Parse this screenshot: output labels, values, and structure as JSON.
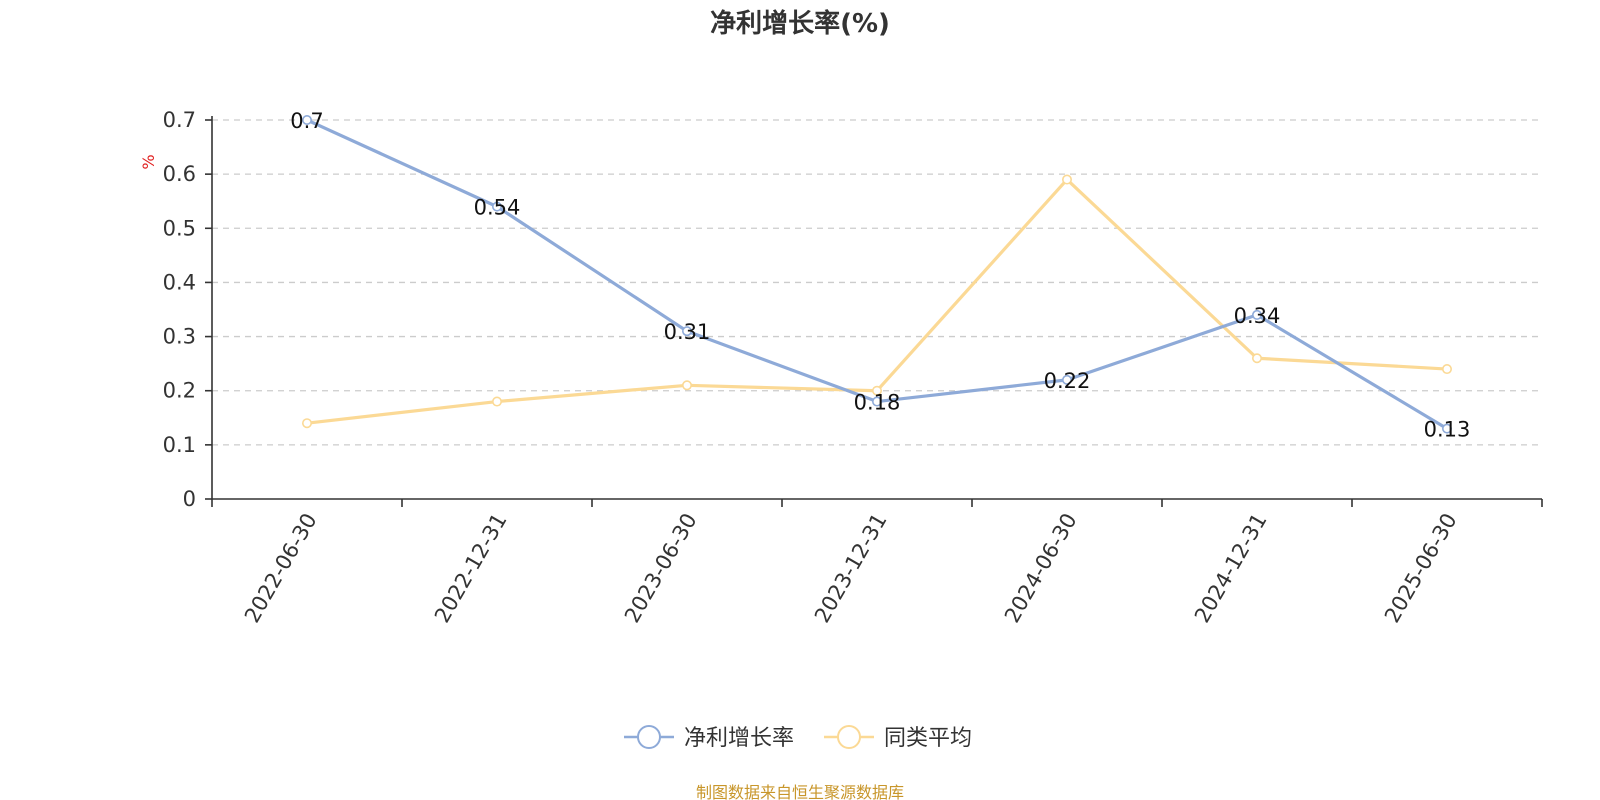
{
  "chart_data": {
    "type": "line",
    "title": "净利增长率(%)",
    "ylabel": "%",
    "ylabel_color": "#e02020",
    "categories": [
      "2022-06-30",
      "2022-12-31",
      "2023-06-30",
      "2023-12-31",
      "2024-06-30",
      "2024-12-31",
      "2025-06-30"
    ],
    "series": [
      {
        "name": "净利增长率",
        "values": [
          0.7,
          0.54,
          0.31,
          0.18,
          0.22,
          0.34,
          0.13
        ],
        "color": "#8eaad8",
        "show_labels": true
      },
      {
        "name": "同类平均",
        "values": [
          0.14,
          0.18,
          0.21,
          0.2,
          0.59,
          0.26,
          0.24
        ],
        "color": "#fbd995",
        "show_labels": false
      }
    ],
    "ylim": [
      0,
      0.7
    ],
    "yticks": [
      0,
      0.1,
      0.2,
      0.3,
      0.4,
      0.5,
      0.6,
      0.7
    ],
    "ytick_labels": [
      "0",
      "0.1",
      "0.2",
      "0.3",
      "0.4",
      "0.5",
      "0.6",
      "0.7"
    ],
    "grid": true,
    "legend_position": "bottom-center"
  },
  "source_note": "制图数据来自恒生聚源数据库",
  "source_color": "#c8962a"
}
